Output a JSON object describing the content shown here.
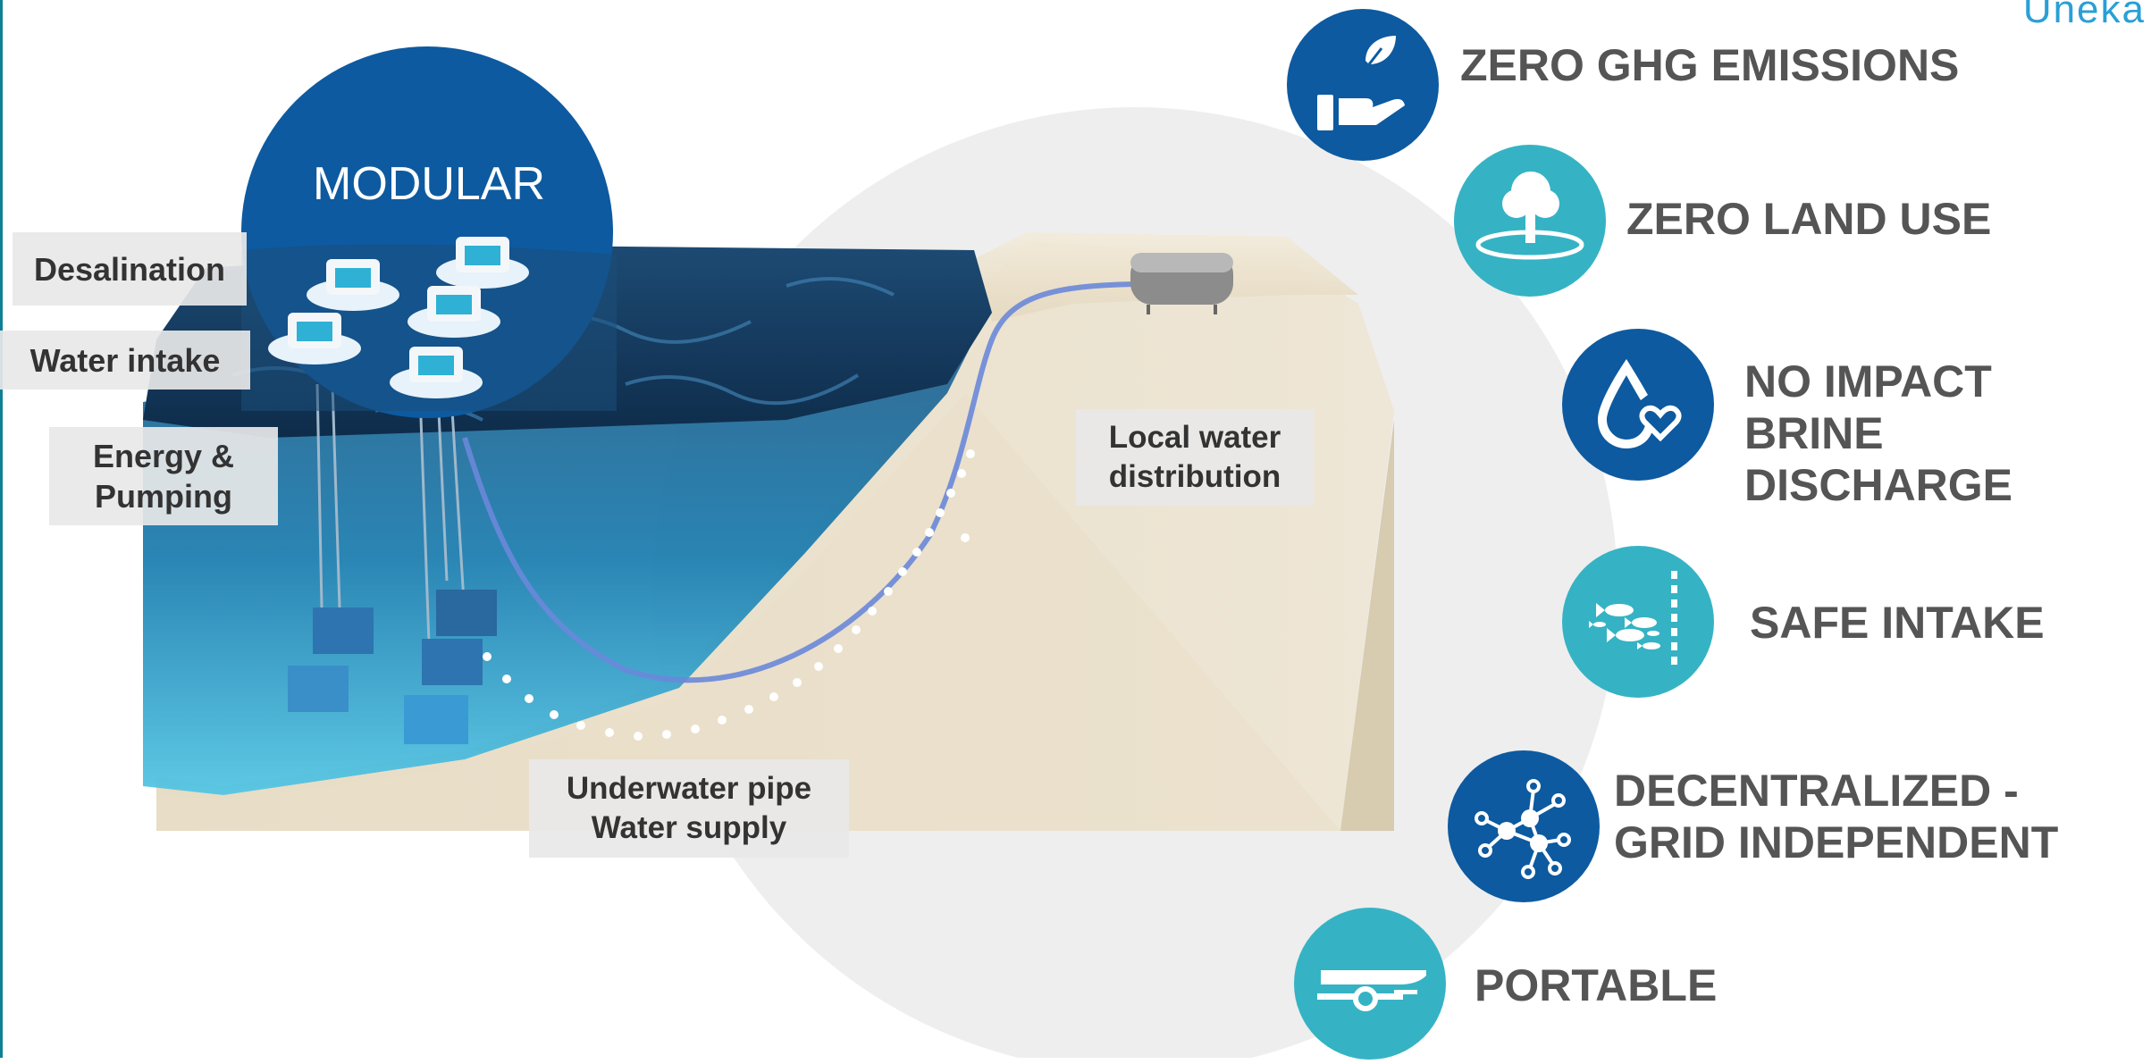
{
  "brand": {
    "logo_text": "Uneka",
    "primary_color": "#0d5aa0",
    "accent_color": "#35b3c4"
  },
  "scene": {
    "modular_label": "MODULAR",
    "labels": {
      "desalination": "Desalination",
      "water_intake": "Water intake",
      "energy_pumping": "Energy & Pumping",
      "local_water": "Local water distribution",
      "underwater_pipe": "Underwater pipe",
      "water_supply": "Water supply"
    }
  },
  "features": [
    {
      "title": "ZERO GHG EMISSIONS",
      "icon": "hand-leaf-icon",
      "color": "#0d5aa0"
    },
    {
      "title": "ZERO LAND USE",
      "icon": "tree-icon",
      "color": "#35b3c4"
    },
    {
      "title": "NO IMPACT BRINE DISCHARGE",
      "icon": "water-drop-heart-icon",
      "color": "#0d5aa0"
    },
    {
      "title": "SAFE INTAKE",
      "icon": "fish-icon",
      "color": "#35b3c4"
    },
    {
      "title": "DECENTRALIZED - GRID INDEPENDENT",
      "icon": "network-icon",
      "color": "#0d5aa0"
    },
    {
      "title": "PORTABLE",
      "icon": "trailer-icon",
      "color": "#35b3c4"
    }
  ]
}
